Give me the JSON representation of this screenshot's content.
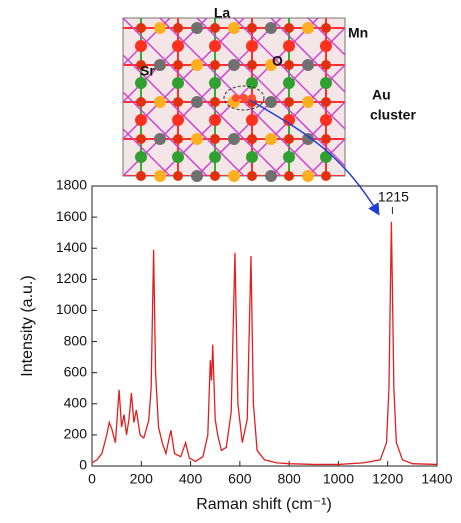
{
  "chart_data": {
    "type": "line",
    "x_label": "Raman shift (cm⁻¹)",
    "y_label": "Intensity (a.u.)",
    "x": [
      0,
      20,
      40,
      60,
      70,
      80,
      95,
      110,
      120,
      130,
      140,
      150,
      160,
      170,
      180,
      195,
      210,
      230,
      240,
      250,
      258,
      270,
      285,
      300,
      320,
      335,
      360,
      380,
      395,
      420,
      450,
      470,
      480,
      485,
      490,
      500,
      510,
      525,
      545,
      565,
      580,
      592,
      610,
      630,
      645,
      655,
      670,
      700,
      750,
      800,
      900,
      1000,
      1100,
      1170,
      1195,
      1205,
      1215,
      1225,
      1235,
      1260,
      1300,
      1400
    ],
    "series": [
      {
        "color": "#e02020",
        "values": [
          20,
          40,
          80,
          200,
          280,
          240,
          150,
          490,
          250,
          330,
          200,
          300,
          470,
          280,
          360,
          200,
          180,
          290,
          500,
          1390,
          600,
          250,
          150,
          80,
          230,
          80,
          60,
          150,
          50,
          30,
          60,
          200,
          680,
          550,
          780,
          300,
          200,
          100,
          120,
          350,
          1370,
          400,
          150,
          300,
          1350,
          400,
          100,
          40,
          20,
          15,
          10,
          10,
          20,
          40,
          150,
          500,
          1570,
          500,
          150,
          40,
          15,
          10
        ]
      }
    ],
    "annotations": [
      {
        "text": "1215",
        "x": 1215
      }
    ],
    "xlim": [
      0,
      1400
    ],
    "xticks": [
      0,
      200,
      400,
      600,
      800,
      1000,
      1200,
      1400
    ],
    "ylim": [
      0,
      1800
    ],
    "yticks": [
      0,
      200,
      400,
      600,
      800,
      1000,
      1200,
      1400,
      1600,
      1800
    ]
  },
  "inset": {
    "labels": [
      "La",
      "Mn",
      "Sr",
      "O",
      "Au",
      "cluster"
    ]
  }
}
